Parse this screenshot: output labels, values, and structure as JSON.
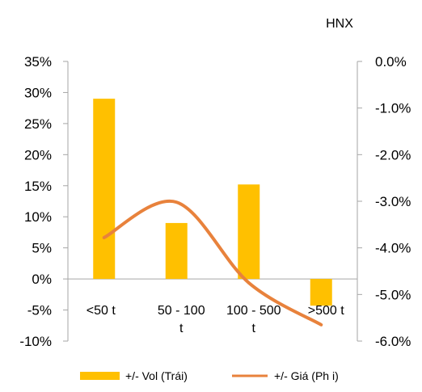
{
  "chart_data": {
    "type": "bar+line",
    "title": "HNX",
    "categories": [
      [
        "<50 t"
      ],
      [
        "50  -  100",
        "t"
      ],
      [
        "100  -  500",
        "t"
      ],
      [
        ">500 t"
      ]
    ],
    "series": [
      {
        "name": "+/- Vol (Trái)",
        "type": "bar",
        "axis": "left",
        "color": "#FFC000",
        "values": [
          29.0,
          9.0,
          15.2,
          -4.3
        ]
      },
      {
        "name": "+/- Giá (Ph  i)",
        "type": "line",
        "axis": "right",
        "color": "#E8823C",
        "values": [
          -3.78,
          -3.02,
          -4.75,
          -5.65
        ]
      }
    ],
    "y_left": {
      "min": -10,
      "max": 35,
      "step": 5,
      "tick_labels": [
        "-10%",
        "-5%",
        "0%",
        "5%",
        "10%",
        "15%",
        "20%",
        "25%",
        "30%",
        "35%"
      ]
    },
    "y_right": {
      "min": -6.0,
      "max": 0.0,
      "step": 1.0,
      "tick_labels": [
        "-6.0%",
        "-5.0%",
        "-4.0%",
        "-3.0%",
        "-2.0%",
        "-1.0%",
        "0.0%"
      ]
    },
    "grid": false,
    "legend_position": "bottom"
  }
}
